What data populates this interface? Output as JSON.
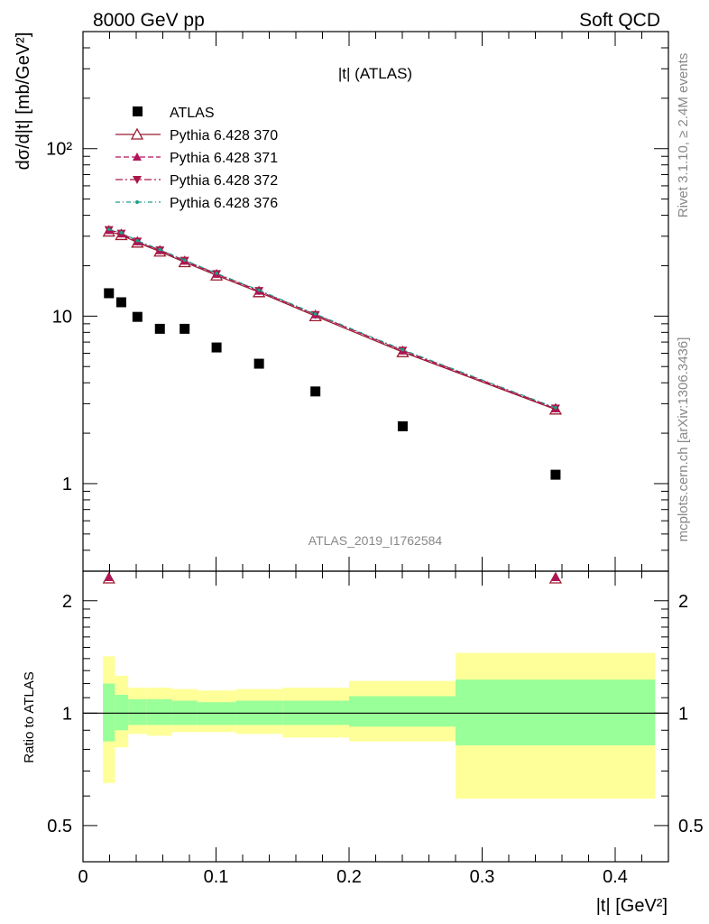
{
  "header": {
    "left": "8000 GeV pp",
    "right": "Soft QCD"
  },
  "plot_title": "|t| (ATLAS)",
  "analysis_id": "ATLAS_2019_I1762584",
  "side_right_top": "Rivet 3.1.10, ≥ 2.4M events",
  "side_right_bottom": "mcplots.cern.ch [arXiv:1306.3436]",
  "ylabel_main": "dσ/d|t| [mb/GeV²]",
  "ylabel_ratio": "Ratio to ATLAS",
  "xlabel": "|t| [GeV²]",
  "legend": [
    {
      "label": "ATLAS",
      "color": "#000000",
      "style": "data-square"
    },
    {
      "label": "Pythia 6.428 370",
      "color": "#9a1b2e",
      "style": "solid-open-triangle"
    },
    {
      "label": "Pythia 6.428 371",
      "color": "#b0155a",
      "style": "dashed-filled-triangle-up"
    },
    {
      "label": "Pythia 6.428 372",
      "color": "#a8184a",
      "style": "dashdot-filled-triangle-down"
    },
    {
      "label": "Pythia 6.428 376",
      "color": "#1f9e8a",
      "style": "dashdot-dot"
    }
  ],
  "chart_data": [
    {
      "type": "scatter",
      "panel": "main",
      "title": "|t| (ATLAS)",
      "xlabel": "|t| [GeV²]",
      "ylabel": "dσ/d|t| [mb/GeV²]",
      "yscale": "log",
      "xlim": [
        0,
        0.44
      ],
      "ylim": [
        0.3,
        500
      ],
      "x_ticks": [
        "0",
        "0.1",
        "0.2",
        "0.3",
        "0.4"
      ],
      "y_ticks": [
        "1",
        "10",
        "10²"
      ],
      "x": [
        0.0195,
        0.0288,
        0.0409,
        0.0578,
        0.0764,
        0.1004,
        0.1323,
        0.1747,
        0.2403,
        0.3552
      ],
      "series": [
        {
          "name": "ATLAS",
          "values": [
            13.7,
            12.1,
            9.9,
            8.4,
            8.4,
            6.5,
            5.2,
            3.55,
            2.2,
            1.13
          ]
        },
        {
          "name": "Pythia 6.428 370",
          "values": [
            32.0,
            30.5,
            27.5,
            24.3,
            21.0,
            17.5,
            13.9,
            10.0,
            6.1,
            2.77
          ]
        },
        {
          "name": "Pythia 6.428 371",
          "values": [
            32.5,
            31.0,
            27.8,
            24.6,
            21.3,
            17.8,
            14.1,
            10.2,
            6.2,
            2.8
          ]
        },
        {
          "name": "Pythia 6.428 372",
          "values": [
            32.8,
            31.2,
            28.0,
            24.8,
            21.5,
            17.9,
            14.2,
            10.2,
            6.25,
            2.82
          ]
        },
        {
          "name": "Pythia 6.428 376",
          "values": [
            33.0,
            31.5,
            28.2,
            25.0,
            21.6,
            18.0,
            14.3,
            10.3,
            6.3,
            2.84
          ]
        }
      ]
    },
    {
      "type": "area",
      "panel": "ratio",
      "ylabel": "Ratio to ATLAS",
      "xlabel": "|t| [GeV²]",
      "xlim": [
        0,
        0.44
      ],
      "ylim": [
        0.4,
        2.4
      ],
      "yscale": "log",
      "x_ticks": [
        "0",
        "0.1",
        "0.2",
        "0.3",
        "0.4"
      ],
      "y_ticks": [
        "0.5",
        "1",
        "2"
      ],
      "bin_edges": [
        0.015,
        0.024,
        0.034,
        0.048,
        0.067,
        0.086,
        0.115,
        0.15,
        0.2,
        0.28,
        0.43
      ],
      "band_stat_lo": [
        0.84,
        0.9,
        0.93,
        0.93,
        0.93,
        0.93,
        0.93,
        0.93,
        0.92,
        0.82
      ],
      "band_stat_hi": [
        1.2,
        1.12,
        1.09,
        1.09,
        1.08,
        1.07,
        1.08,
        1.08,
        1.11,
        1.23
      ],
      "band_total_lo": [
        0.65,
        0.81,
        0.88,
        0.87,
        0.89,
        0.89,
        0.88,
        0.86,
        0.84,
        0.59
      ],
      "band_total_hi": [
        1.42,
        1.26,
        1.17,
        1.17,
        1.16,
        1.15,
        1.16,
        1.17,
        1.22,
        1.45
      ],
      "markers_offscale_x": [
        0.0195,
        0.3552
      ],
      "reference_line": 1.0
    }
  ]
}
